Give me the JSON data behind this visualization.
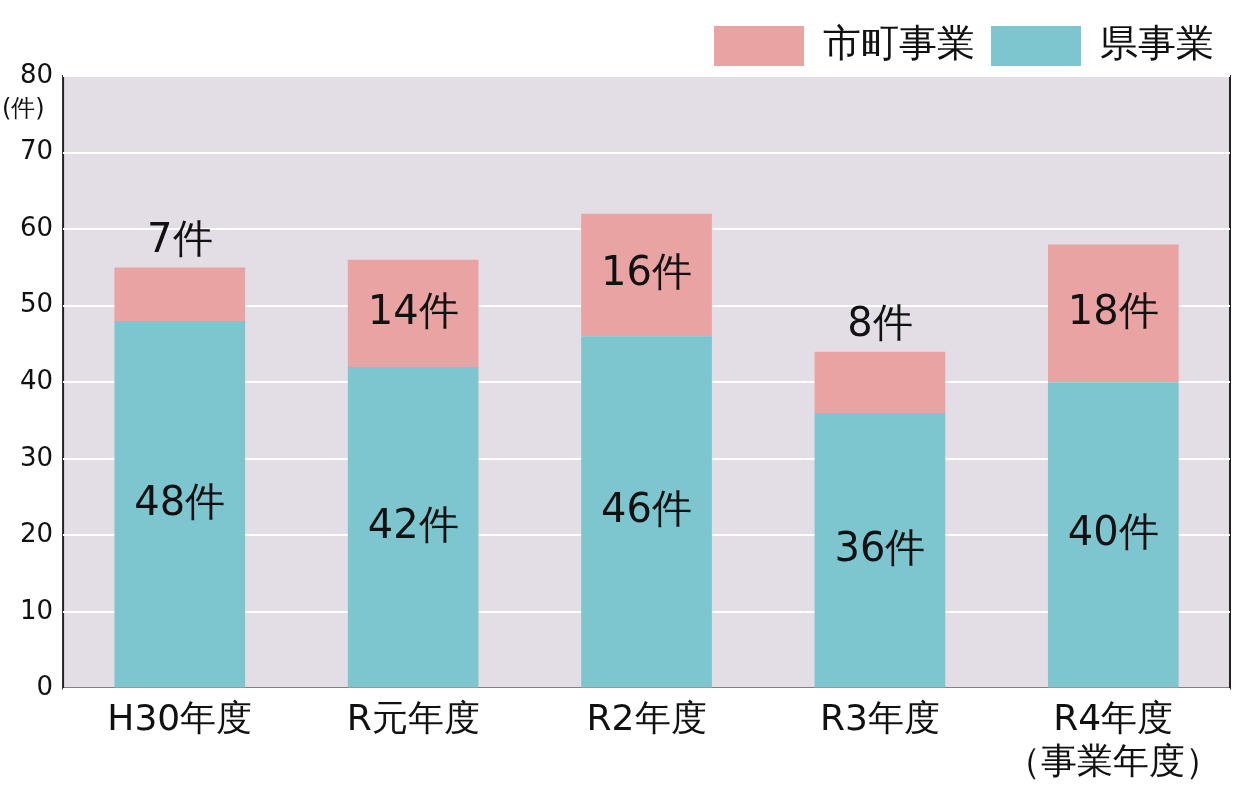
{
  "chart_data": {
    "type": "bar",
    "stacked": true,
    "ylabel": "(件)",
    "categories": [
      "H30年度",
      "R元年度",
      "R2年度",
      "R3年度",
      "R4年度（事業年度）"
    ],
    "series": [
      {
        "name": "県事業",
        "color": "#7dc6cf",
        "values": [
          48,
          42,
          46,
          36,
          40
        ],
        "value_labels": [
          "48件",
          "42件",
          "46件",
          "36件",
          "40件"
        ]
      },
      {
        "name": "市町事業",
        "color": "#eaa3a3",
        "values": [
          7,
          14,
          16,
          8,
          18
        ],
        "value_labels": [
          "7件",
          "14件",
          "16件",
          "8件",
          "18件"
        ]
      }
    ],
    "ylim": [
      0,
      80
    ],
    "yticks": [
      0,
      10,
      20,
      30,
      40,
      50,
      60,
      70,
      80
    ],
    "grid": "y",
    "legend": "top right"
  }
}
